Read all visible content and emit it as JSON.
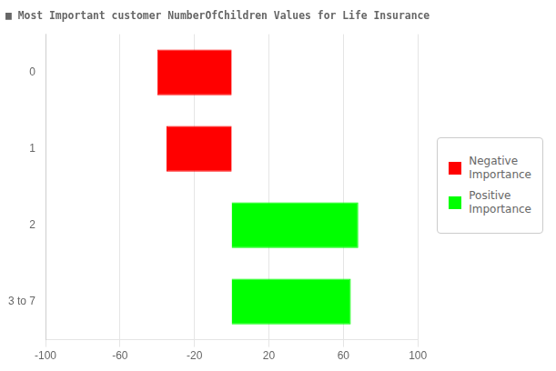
{
  "chart_data": {
    "type": "bar",
    "orientation": "horizontal",
    "title": "■ Most Important customer NumberOfChildren Values for Life Insurance",
    "categories": [
      "0",
      "1",
      "2",
      "3 to 7"
    ],
    "series": [
      {
        "name": "Negative\nImportance",
        "color": "#ff0000",
        "values": [
          -40,
          -35,
          null,
          null
        ]
      },
      {
        "name": "Positive\nImportance",
        "color": "#00ff00",
        "values": [
          null,
          null,
          68,
          64
        ]
      }
    ],
    "xlim": [
      -100,
      100
    ],
    "xticks": [
      -100,
      -60,
      -20,
      20,
      60,
      100
    ],
    "grid": true,
    "legend": "right"
  }
}
